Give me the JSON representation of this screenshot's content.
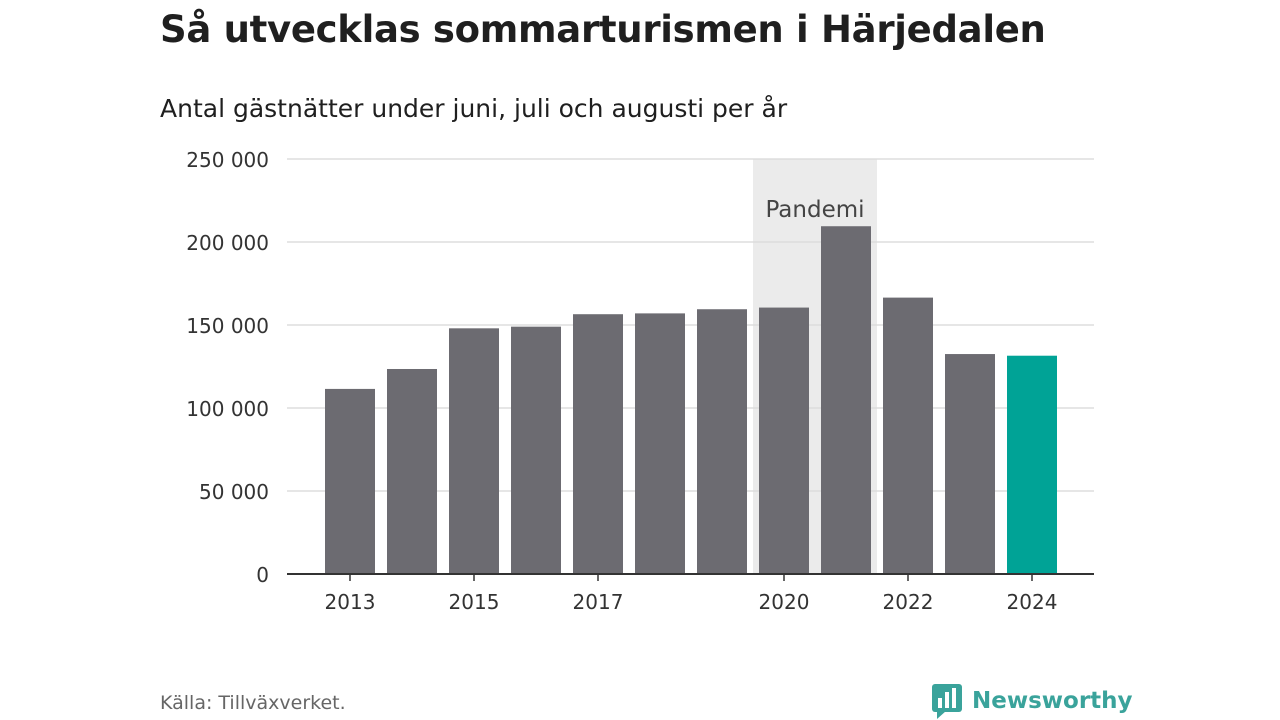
{
  "title": "Så utvecklas sommarturismen i Härjedalen",
  "subtitle": "Antal gästnätter under juni, juli och augusti per år",
  "source": "Källa: Tillväxverket.",
  "brand": {
    "name": "Newsworthy",
    "icon": "newsworthy-logo-icon",
    "color": "#3aa39b"
  },
  "colors": {
    "bar": "#6c6b71",
    "highlight": "#00a396",
    "shade": "#ebebeb",
    "grid": "#dddddd",
    "axis": "#333333"
  },
  "chart_data": {
    "type": "bar",
    "categories": [
      "2013",
      "2014",
      "2015",
      "2016",
      "2017",
      "2018",
      "2019",
      "2020",
      "2021",
      "2022",
      "2023",
      "2024"
    ],
    "values": [
      111500,
      123500,
      148000,
      149000,
      156500,
      157000,
      159500,
      160500,
      209500,
      166500,
      132500,
      131500
    ],
    "highlight_category": "2024",
    "x_tick_labels": [
      "2013",
      "2015",
      "2017",
      "2020",
      "2022",
      "2024"
    ],
    "y_ticks": [
      0,
      50000,
      100000,
      150000,
      200000,
      250000
    ],
    "y_tick_labels": [
      "0",
      "50 000",
      "100 000",
      "150 000",
      "200 000",
      "250 000"
    ],
    "ylim": [
      0,
      250000
    ],
    "grid": true,
    "annotation": {
      "label": "Pandemi",
      "from": "2020",
      "to": "2021"
    }
  }
}
